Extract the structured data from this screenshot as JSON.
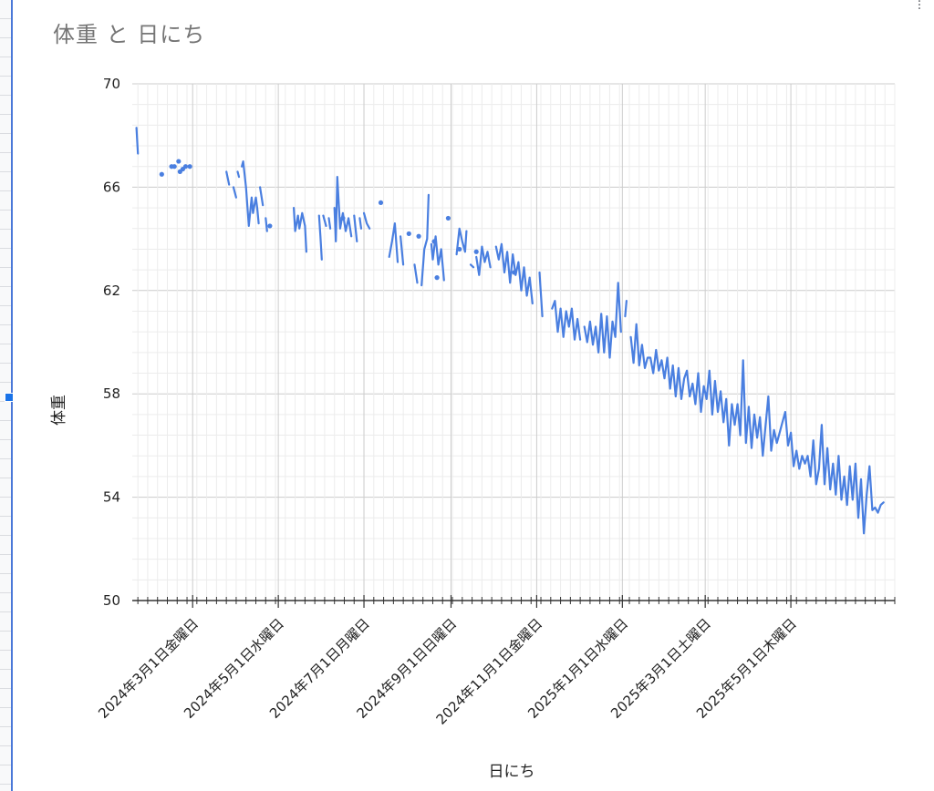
{
  "chart_data": {
    "type": "line",
    "title": "体重 と 日にち",
    "xlabel": "日にち",
    "ylabel": "体重",
    "ylim": [
      50,
      70
    ],
    "y_ticks": [
      50,
      54,
      58,
      62,
      66,
      70
    ],
    "x_range": [
      "2024-01-18",
      "2025-07-14"
    ],
    "x_tick_labels": [
      {
        "date": "2024-03-01",
        "label": "2024年3月1日金曜日"
      },
      {
        "date": "2024-05-01",
        "label": "2024年5月1日水曜日"
      },
      {
        "date": "2024-07-01",
        "label": "2024年7月1日月曜日"
      },
      {
        "date": "2024-09-01",
        "label": "2024年9月1日日曜日"
      },
      {
        "date": "2024-11-01",
        "label": "2024年11月1日金曜日"
      },
      {
        "date": "2025-01-01",
        "label": "2025年1月1日水曜日"
      },
      {
        "date": "2025-03-01",
        "label": "2025年3月1日土曜日"
      },
      {
        "date": "2025-05-01",
        "label": "2025年5月1日木曜日"
      }
    ],
    "grid": true,
    "legend": "none",
    "line_color": "#4a7fe0",
    "series": [
      {
        "segments": [
          [
            [
              "2024-01-21",
              68.3
            ],
            [
              "2024-01-22",
              67.3
            ]
          ],
          [
            [
              "2024-03-25",
              66.6
            ],
            [
              "2024-03-27",
              66.1
            ]
          ],
          [
            [
              "2024-03-30",
              66.0
            ],
            [
              "2024-04-01",
              65.6
            ]
          ],
          [
            [
              "2024-04-02",
              66.6
            ],
            [
              "2024-04-03",
              66.4
            ]
          ],
          [
            [
              "2024-04-05",
              66.8
            ],
            [
              "2024-04-06",
              67.0
            ],
            [
              "2024-04-08",
              66.0
            ],
            [
              "2024-04-10",
              64.5
            ],
            [
              "2024-04-12",
              65.6
            ],
            [
              "2024-04-13",
              65.0
            ],
            [
              "2024-04-15",
              65.6
            ],
            [
              "2024-04-16",
              65.2
            ],
            [
              "2024-04-17",
              64.6
            ]
          ],
          [
            [
              "2024-04-18",
              66.0
            ],
            [
              "2024-04-20",
              65.3
            ]
          ],
          [
            [
              "2024-04-22",
              64.8
            ],
            [
              "2024-04-23",
              64.3
            ]
          ],
          [
            [
              "2024-05-12",
              65.2
            ],
            [
              "2024-05-13",
              64.3
            ],
            [
              "2024-05-15",
              64.9
            ],
            [
              "2024-05-16",
              64.4
            ],
            [
              "2024-05-18",
              65.0
            ],
            [
              "2024-05-20",
              64.5
            ],
            [
              "2024-05-21",
              63.5
            ]
          ],
          [
            [
              "2024-05-30",
              64.9
            ],
            [
              "2024-05-31",
              64.1
            ],
            [
              "2024-06-01",
              63.2
            ]
          ],
          [
            [
              "2024-06-02",
              64.9
            ],
            [
              "2024-06-04",
              64.5
            ]
          ],
          [
            [
              "2024-06-06",
              64.8
            ],
            [
              "2024-06-07",
              64.4
            ]
          ],
          [
            [
              "2024-06-10",
              65.2
            ],
            [
              "2024-06-11",
              63.9
            ],
            [
              "2024-06-12",
              66.4
            ],
            [
              "2024-06-14",
              64.4
            ],
            [
              "2024-06-16",
              65.0
            ],
            [
              "2024-06-18",
              64.3
            ],
            [
              "2024-06-20",
              64.8
            ],
            [
              "2024-06-22",
              64.1
            ]
          ],
          [
            [
              "2024-06-24",
              64.9
            ],
            [
              "2024-06-26",
              63.9
            ]
          ],
          [
            [
              "2024-06-28",
              64.8
            ],
            [
              "2024-06-29",
              64.4
            ]
          ],
          [
            [
              "2024-07-01",
              65.0
            ],
            [
              "2024-07-03",
              64.6
            ],
            [
              "2024-07-05",
              64.4
            ]
          ],
          [
            [
              "2024-07-19",
              63.3
            ],
            [
              "2024-07-21",
              63.9
            ],
            [
              "2024-07-23",
              64.6
            ],
            [
              "2024-07-25",
              63.1
            ]
          ],
          [
            [
              "2024-07-27",
              64.1
            ],
            [
              "2024-07-29",
              63.0
            ]
          ],
          [
            [
              "2024-08-06",
              63.0
            ],
            [
              "2024-08-08",
              62.3
            ]
          ],
          [
            [
              "2024-08-11",
              62.2
            ],
            [
              "2024-08-13",
              63.6
            ],
            [
              "2024-08-15",
              64.0
            ],
            [
              "2024-08-16",
              65.7
            ]
          ],
          [
            [
              "2024-08-18",
              63.8
            ],
            [
              "2024-08-19",
              63.2
            ],
            [
              "2024-08-21",
              64.1
            ],
            [
              "2024-08-23",
              63.0
            ],
            [
              "2024-08-25",
              63.6
            ],
            [
              "2024-08-27",
              62.4
            ]
          ],
          [
            [
              "2024-09-05",
              63.4
            ],
            [
              "2024-09-07",
              64.4
            ],
            [
              "2024-09-09",
              63.9
            ],
            [
              "2024-09-11",
              63.5
            ],
            [
              "2024-09-12",
              64.3
            ]
          ],
          [
            [
              "2024-09-15",
              63.0
            ],
            [
              "2024-09-17",
              62.9
            ]
          ],
          [
            [
              "2024-09-19",
              63.3
            ],
            [
              "2024-09-21",
              62.6
            ],
            [
              "2024-09-23",
              63.7
            ],
            [
              "2024-09-25",
              63.1
            ],
            [
              "2024-09-27",
              63.5
            ],
            [
              "2024-09-29",
              62.9
            ]
          ],
          [
            [
              "2024-10-03",
              63.7
            ],
            [
              "2024-10-05",
              63.2
            ],
            [
              "2024-10-07",
              63.8
            ],
            [
              "2024-10-09",
              62.7
            ],
            [
              "2024-10-11",
              63.5
            ],
            [
              "2024-10-13",
              62.3
            ],
            [
              "2024-10-15",
              63.4
            ],
            [
              "2024-10-17",
              62.6
            ],
            [
              "2024-10-19",
              63.1
            ],
            [
              "2024-10-21",
              62.0
            ],
            [
              "2024-10-23",
              62.9
            ],
            [
              "2024-10-25",
              61.8
            ],
            [
              "2024-10-27",
              62.5
            ],
            [
              "2024-10-29",
              61.5
            ]
          ],
          [
            [
              "2024-11-03",
              62.7
            ],
            [
              "2024-11-05",
              61.0
            ]
          ],
          [
            [
              "2024-11-12",
              61.3
            ],
            [
              "2024-11-14",
              61.6
            ],
            [
              "2024-11-16",
              60.4
            ],
            [
              "2024-11-18",
              61.3
            ],
            [
              "2024-11-20",
              60.2
            ],
            [
              "2024-11-22",
              61.2
            ],
            [
              "2024-11-24",
              60.6
            ],
            [
              "2024-11-26",
              61.3
            ],
            [
              "2024-11-28",
              60.1
            ],
            [
              "2024-11-30",
              60.9
            ],
            [
              "2024-12-02",
              60.1
            ]
          ],
          [
            [
              "2024-12-05",
              60.6
            ],
            [
              "2024-12-07",
              60.0
            ],
            [
              "2024-12-09",
              60.8
            ],
            [
              "2024-12-11",
              59.9
            ],
            [
              "2024-12-13",
              60.6
            ],
            [
              "2024-12-15",
              59.6
            ],
            [
              "2024-12-17",
              61.1
            ],
            [
              "2024-12-19",
              59.6
            ],
            [
              "2024-12-21",
              61.0
            ],
            [
              "2024-12-23",
              59.4
            ],
            [
              "2024-12-25",
              60.8
            ],
            [
              "2024-12-27",
              60.2
            ],
            [
              "2024-12-29",
              62.3
            ],
            [
              "2024-12-31",
              60.4
            ]
          ],
          [
            [
              "2025-01-03",
              61.0
            ],
            [
              "2025-01-04",
              61.6
            ]
          ],
          [
            [
              "2025-01-07",
              60.2
            ],
            [
              "2025-01-09",
              59.2
            ],
            [
              "2025-01-11",
              60.7
            ],
            [
              "2025-01-13",
              59.1
            ],
            [
              "2025-01-15",
              59.9
            ],
            [
              "2025-01-17",
              59.0
            ],
            [
              "2025-01-19",
              59.4
            ],
            [
              "2025-01-21",
              59.4
            ],
            [
              "2025-01-23",
              58.8
            ],
            [
              "2025-01-25",
              59.7
            ],
            [
              "2025-01-27",
              58.9
            ],
            [
              "2025-01-29",
              59.3
            ],
            [
              "2025-01-31",
              58.6
            ],
            [
              "2025-02-02",
              59.4
            ],
            [
              "2025-02-04",
              58.2
            ],
            [
              "2025-02-06",
              59.1
            ],
            [
              "2025-02-08",
              57.9
            ],
            [
              "2025-02-10",
              59.0
            ],
            [
              "2025-02-12",
              57.8
            ],
            [
              "2025-02-14",
              58.6
            ],
            [
              "2025-02-16",
              58.9
            ],
            [
              "2025-02-18",
              57.9
            ],
            [
              "2025-02-20",
              58.4
            ],
            [
              "2025-02-22",
              57.6
            ],
            [
              "2025-02-24",
              58.8
            ],
            [
              "2025-02-26",
              57.3
            ],
            [
              "2025-02-28",
              58.3
            ],
            [
              "2025-03-02",
              57.8
            ],
            [
              "2025-03-04",
              58.9
            ],
            [
              "2025-03-06",
              57.2
            ],
            [
              "2025-03-08",
              58.5
            ],
            [
              "2025-03-10",
              57.3
            ],
            [
              "2025-03-12",
              58.1
            ],
            [
              "2025-03-14",
              56.9
            ],
            [
              "2025-03-16",
              57.8
            ],
            [
              "2025-03-18",
              56.0
            ],
            [
              "2025-03-20",
              57.6
            ],
            [
              "2025-03-22",
              56.8
            ],
            [
              "2025-03-24",
              57.6
            ],
            [
              "2025-03-26",
              56.4
            ],
            [
              "2025-03-28",
              59.3
            ],
            [
              "2025-03-30",
              56.1
            ],
            [
              "2025-04-01",
              57.5
            ],
            [
              "2025-04-03",
              55.9
            ],
            [
              "2025-04-05",
              57.2
            ],
            [
              "2025-04-07",
              56.3
            ],
            [
              "2025-04-09",
              57.1
            ],
            [
              "2025-04-11",
              55.6
            ],
            [
              "2025-04-13",
              56.8
            ],
            [
              "2025-04-15",
              57.9
            ],
            [
              "2025-04-17",
              55.8
            ],
            [
              "2025-04-19",
              56.6
            ],
            [
              "2025-04-21",
              56.1
            ],
            [
              "2025-04-23",
              56.5
            ],
            [
              "2025-04-25",
              56.9
            ],
            [
              "2025-04-27",
              57.3
            ],
            [
              "2025-04-29",
              56.0
            ],
            [
              "2025-05-01",
              56.5
            ],
            [
              "2025-05-03",
              55.2
            ],
            [
              "2025-05-05",
              55.8
            ],
            [
              "2025-05-07",
              55.1
            ],
            [
              "2025-05-09",
              55.6
            ],
            [
              "2025-05-11",
              55.3
            ],
            [
              "2025-05-13",
              55.6
            ],
            [
              "2025-05-15",
              54.8
            ],
            [
              "2025-05-17",
              56.2
            ],
            [
              "2025-05-19",
              54.5
            ],
            [
              "2025-05-21",
              55.1
            ],
            [
              "2025-05-23",
              56.8
            ],
            [
              "2025-05-25",
              54.5
            ],
            [
              "2025-05-27",
              55.9
            ],
            [
              "2025-05-29",
              54.3
            ],
            [
              "2025-05-31",
              55.3
            ],
            [
              "2025-06-02",
              54.1
            ],
            [
              "2025-06-04",
              55.6
            ],
            [
              "2025-06-06",
              53.9
            ],
            [
              "2025-06-08",
              54.8
            ],
            [
              "2025-06-10",
              53.7
            ],
            [
              "2025-06-12",
              55.2
            ],
            [
              "2025-06-14",
              53.9
            ],
            [
              "2025-06-16",
              55.3
            ],
            [
              "2025-06-18",
              53.2
            ],
            [
              "2025-06-20",
              54.7
            ],
            [
              "2025-06-22",
              52.6
            ],
            [
              "2025-06-24",
              54.1
            ],
            [
              "2025-06-26",
              55.2
            ],
            [
              "2025-06-28",
              53.5
            ],
            [
              "2025-06-30",
              53.6
            ],
            [
              "2025-07-02",
              53.4
            ],
            [
              "2025-07-04",
              53.7
            ],
            [
              "2025-07-06",
              53.8
            ]
          ]
        ],
        "points": [
          [
            "2024-02-08",
            66.5
          ],
          [
            "2024-02-15",
            66.8
          ],
          [
            "2024-02-17",
            66.8
          ],
          [
            "2024-02-20",
            67.0
          ],
          [
            "2024-02-21",
            66.6
          ],
          [
            "2024-02-23",
            66.7
          ],
          [
            "2024-02-25",
            66.8
          ],
          [
            "2024-02-28",
            66.8
          ],
          [
            "2024-04-25",
            64.5
          ],
          [
            "2024-06-16",
            64.8
          ],
          [
            "2024-07-13",
            65.4
          ],
          [
            "2024-08-02",
            64.2
          ],
          [
            "2024-08-09",
            64.1
          ],
          [
            "2024-08-20",
            63.9
          ],
          [
            "2024-08-22",
            62.5
          ],
          [
            "2024-08-30",
            64.8
          ],
          [
            "2024-09-07",
            63.6
          ],
          [
            "2024-09-19",
            63.5
          ],
          [
            "2024-10-16",
            62.7
          ]
        ]
      }
    ]
  }
}
